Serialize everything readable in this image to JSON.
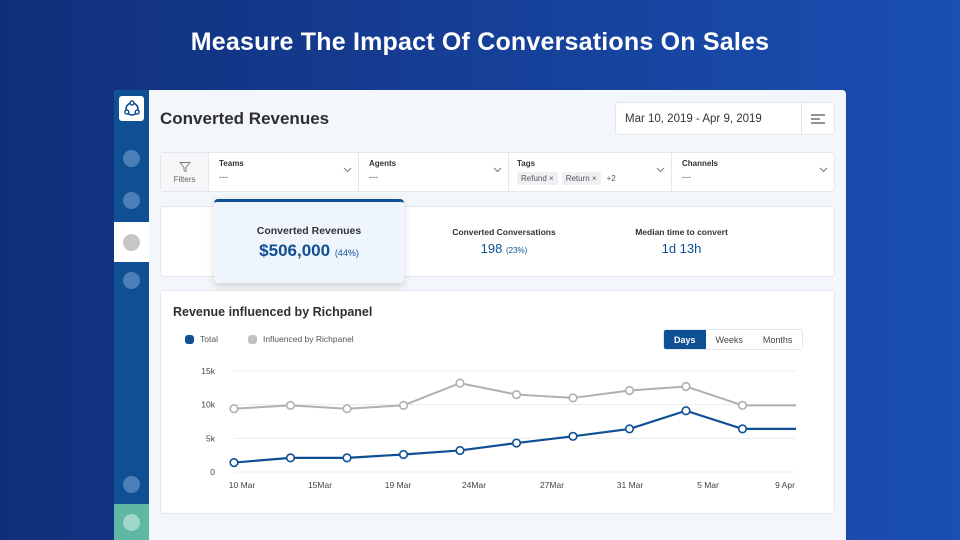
{
  "headline": "Measure The Impact Of Conversations On Sales",
  "sidebar": {
    "logo_icon": "richpanel-logo-icon",
    "items": [
      {
        "name": "nav-item-1",
        "state": "default"
      },
      {
        "name": "nav-item-2",
        "state": "default"
      },
      {
        "name": "nav-item-3",
        "state": "active"
      },
      {
        "name": "nav-item-4",
        "state": "default"
      },
      {
        "name": "nav-item-5",
        "state": "default"
      },
      {
        "name": "nav-item-6",
        "state": "accent"
      }
    ]
  },
  "page": {
    "title": "Converted Revenues",
    "date_range": "Mar 10, 2019  -  Apr 9, 2019",
    "menu_icon": "menu-lines-icon"
  },
  "filters": {
    "label": "Filters",
    "items": [
      {
        "label": "Teams",
        "value": "---"
      },
      {
        "label": "Agents",
        "value": "---"
      },
      {
        "label": "Tags",
        "tags": [
          "Refund",
          "Return"
        ],
        "more": "+2"
      },
      {
        "label": "Channels",
        "value": "---"
      }
    ]
  },
  "kpis": {
    "main": {
      "label": "Converted Revenues",
      "value": "$506,000",
      "pct": "(44%)"
    },
    "conversations": {
      "label": "Converted Conversations",
      "value": "198",
      "pct": "(23%)"
    },
    "median": {
      "label": "Median time to convert",
      "value": "1d 13h"
    }
  },
  "chart_card": {
    "title": "Revenue influenced by Richpanel",
    "segments": [
      {
        "label": "Days",
        "active": true
      },
      {
        "label": "Weeks",
        "active": false
      },
      {
        "label": "Months",
        "active": false
      }
    ]
  },
  "colors": {
    "total": "#0f4f93",
    "influenced": "#b0b0b0",
    "brand": "#0f4f93",
    "accent": "#5fb8a3"
  },
  "chart_data": {
    "type": "line",
    "title": "Revenue influenced by Richpanel",
    "xlabel": "",
    "ylabel": "",
    "ylim": [
      0,
      15000
    ],
    "yticks": [
      0,
      5000,
      10000,
      15000
    ],
    "ytick_labels": [
      "0",
      "5k",
      "10k",
      "15k"
    ],
    "x_tick_labels": [
      "10 Mar",
      "15Mar",
      "19 Mar",
      "24Mar",
      "27Mar",
      "31 Mar",
      "5 Mar",
      "9 Apr"
    ],
    "grid": true,
    "legend": "top-left",
    "series": [
      {
        "name": "Total",
        "color": "#0f4f93",
        "values": [
          1400,
          2100,
          2100,
          2600,
          3200,
          4300,
          5300,
          6400,
          9100,
          6400,
          6400
        ]
      },
      {
        "name": "Influenced by Richpanel",
        "color": "#b0b0b0",
        "values": [
          9400,
          9900,
          9400,
          9900,
          13200,
          11500,
          11000,
          12100,
          12700,
          9900,
          9900
        ]
      }
    ],
    "marker_count": 10
  }
}
